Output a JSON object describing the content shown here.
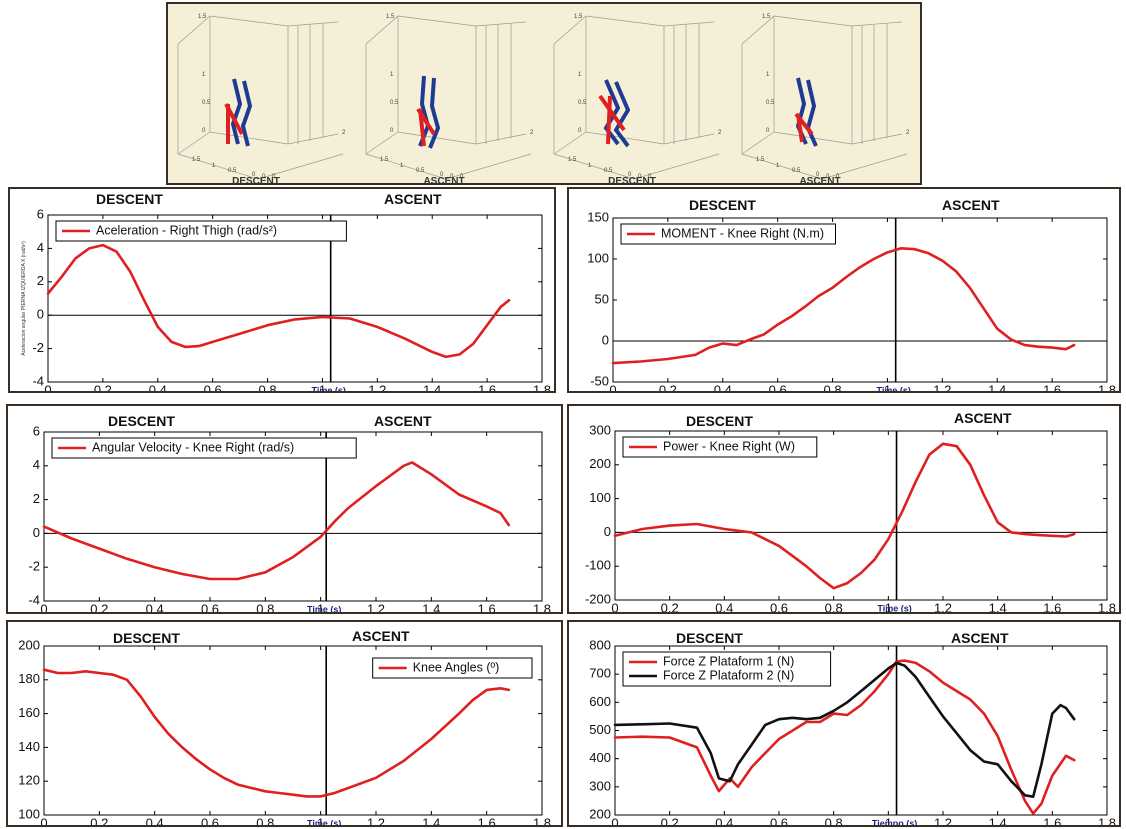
{
  "stick_figures": {
    "labels": [
      "DESCENT",
      "ASCENT",
      "DESCENT",
      "ASCENT"
    ],
    "tick_labels": [
      "1.5",
      "1",
      "0.5",
      "0",
      "2",
      "1.5",
      "1",
      "0.5",
      "0",
      "0",
      "0"
    ],
    "colors": {
      "left_leg": "#1f3a93",
      "right_leg": "#e02020"
    }
  },
  "charts": [
    {
      "id": "accel",
      "descent_label": "DESCENT",
      "ascent_label": "ASCENT",
      "xlabel": "Time (s)",
      "ylabel": "Aceleracion angular PIERNA IZQUIERDA X (rad/s²)",
      "legend": [
        "Aceleration - Right Thigh   (rad/s²)"
      ],
      "legend_pos": "top-left",
      "xlim": [
        0,
        1.8
      ],
      "ylim": [
        -4,
        6
      ],
      "xticks": [
        "0",
        "0.2",
        "0.4",
        "0.6",
        "0.8",
        "1",
        "1.2",
        "1.4",
        "1.6",
        "1.8"
      ],
      "yticks": [
        "-4",
        "-2",
        "0",
        "2",
        "4",
        "6"
      ],
      "divider_x": 1.03
    },
    {
      "id": "moment",
      "descent_label": "DESCENT",
      "ascent_label": "ASCENT",
      "xlabel": "Time (s)",
      "legend": [
        "MOMENT - Knee Right (N.m)"
      ],
      "legend_pos": "top-left",
      "xlim": [
        0,
        1.8
      ],
      "ylim": [
        -50,
        150
      ],
      "xticks": [
        "0",
        "0.2",
        "0.4",
        "0.6",
        "0.8",
        "1",
        "1.2",
        "1.4",
        "1.6",
        "1.8"
      ],
      "yticks": [
        "-50",
        "0",
        "50",
        "100",
        "150"
      ],
      "divider_x": 1.03
    },
    {
      "id": "angvel",
      "descent_label": "DESCENT",
      "ascent_label": "ASCENT",
      "xlabel": "Time (s)",
      "legend": [
        "Angular Velocity - Knee Right  (rad/s)"
      ],
      "legend_pos": "top-left",
      "xlim": [
        0,
        1.8
      ],
      "ylim": [
        -4,
        6
      ],
      "xticks": [
        "0",
        "0.2",
        "0.4",
        "0.6",
        "0.8",
        "1",
        "1.2",
        "1.4",
        "1.6",
        "1.8"
      ],
      "yticks": [
        "-4",
        "-2",
        "0",
        "2",
        "4",
        "6"
      ],
      "divider_x": 1.02
    },
    {
      "id": "power",
      "descent_label": "DESCENT",
      "ascent_label": "ASCENT",
      "xlabel": "Time (s)",
      "legend": [
        "Power - Knee Right (W)"
      ],
      "legend_pos": "top-left",
      "xlim": [
        0,
        1.8
      ],
      "ylim": [
        -200,
        300
      ],
      "xticks": [
        "0",
        "0.2",
        "0.4",
        "0.6",
        "0.8",
        "1",
        "1.2",
        "1.4",
        "1.6",
        "1.8"
      ],
      "yticks": [
        "-200",
        "-100",
        "0",
        "100",
        "200",
        "300"
      ],
      "divider_x": 1.03
    },
    {
      "id": "angles",
      "descent_label": "DESCENT",
      "ascent_label": "ASCENT",
      "xlabel": "Time (s)",
      "legend": [
        "Knee Angles   (º)"
      ],
      "legend_pos": "top-right",
      "xlim": [
        0,
        1.8
      ],
      "ylim": [
        100,
        200
      ],
      "xticks": [
        "0",
        "0.2",
        "0.4",
        "0.6",
        "0.8",
        "1",
        "1.2",
        "1.4",
        "1.6",
        "1.8"
      ],
      "yticks": [
        "100",
        "120",
        "140",
        "160",
        "180",
        "200"
      ],
      "divider_x": 1.02
    },
    {
      "id": "force",
      "descent_label": "DESCENT",
      "ascent_label": "ASCENT",
      "xlabel": "Tiempo (s)",
      "legend": [
        "Force Z Plataform 1  (N)",
        "Force Z Plataform 2  (N)"
      ],
      "legend_pos": "top-left",
      "xlim": [
        0,
        1.8
      ],
      "ylim": [
        200,
        800
      ],
      "xticks": [
        "0",
        "0.2",
        "0.4",
        "0.6",
        "0.8",
        "1",
        "1.2",
        "1.4",
        "1.6",
        "1.8"
      ],
      "yticks": [
        "200",
        "300",
        "400",
        "500",
        "600",
        "700",
        "800"
      ],
      "divider_x": 1.03
    }
  ],
  "chart_data": [
    {
      "type": "line",
      "xlabel": "Time (s)",
      "xlim": [
        0,
        1.8
      ],
      "ylim": [
        -4,
        6
      ],
      "series": [
        {
          "name": "Aceleration - Right Thigh   (rad/s²)",
          "color": "#e02020",
          "x": [
            0,
            0.05,
            0.1,
            0.15,
            0.2,
            0.25,
            0.3,
            0.35,
            0.4,
            0.45,
            0.5,
            0.55,
            0.6,
            0.7,
            0.8,
            0.9,
            1.0,
            1.1,
            1.2,
            1.3,
            1.4,
            1.45,
            1.5,
            1.55,
            1.6,
            1.65,
            1.68
          ],
          "y": [
            1.3,
            2.3,
            3.4,
            4.0,
            4.2,
            3.8,
            2.6,
            0.9,
            -0.7,
            -1.6,
            -1.9,
            -1.85,
            -1.6,
            -1.1,
            -0.6,
            -0.25,
            -0.1,
            -0.2,
            -0.7,
            -1.4,
            -2.2,
            -2.5,
            -2.35,
            -1.7,
            -0.6,
            0.5,
            0.9
          ]
        }
      ]
    },
    {
      "type": "line",
      "xlabel": "Time (s)",
      "xlim": [
        0,
        1.8
      ],
      "ylim": [
        -50,
        150
      ],
      "series": [
        {
          "name": "MOMENT - Knee Right (N.m)",
          "color": "#e02020",
          "x": [
            0,
            0.1,
            0.2,
            0.3,
            0.35,
            0.4,
            0.45,
            0.5,
            0.55,
            0.6,
            0.65,
            0.7,
            0.75,
            0.8,
            0.85,
            0.9,
            0.95,
            1.0,
            1.05,
            1.1,
            1.15,
            1.2,
            1.25,
            1.3,
            1.35,
            1.4,
            1.45,
            1.5,
            1.55,
            1.6,
            1.65,
            1.68
          ],
          "y": [
            -27,
            -25,
            -22,
            -17,
            -8,
            -3,
            -5,
            2,
            8,
            20,
            30,
            42,
            55,
            65,
            78,
            90,
            100,
            108,
            113,
            112,
            107,
            98,
            85,
            65,
            40,
            15,
            2,
            -5,
            -7,
            -8,
            -10,
            -5
          ]
        }
      ]
    },
    {
      "type": "line",
      "xlabel": "Time (s)",
      "xlim": [
        0,
        1.8
      ],
      "ylim": [
        -4,
        6
      ],
      "series": [
        {
          "name": "Angular Velocity - Knee Right  (rad/s)",
          "color": "#e02020",
          "x": [
            0,
            0.1,
            0.2,
            0.3,
            0.4,
            0.5,
            0.6,
            0.7,
            0.8,
            0.9,
            1.0,
            1.05,
            1.1,
            1.2,
            1.3,
            1.33,
            1.4,
            1.5,
            1.6,
            1.65,
            1.68
          ],
          "y": [
            0.4,
            -0.3,
            -0.9,
            -1.5,
            -2.0,
            -2.4,
            -2.7,
            -2.7,
            -2.3,
            -1.4,
            -0.2,
            0.7,
            1.5,
            2.8,
            4.0,
            4.2,
            3.5,
            2.3,
            1.6,
            1.2,
            0.5
          ]
        }
      ]
    },
    {
      "type": "line",
      "xlabel": "Time (s)",
      "xlim": [
        0,
        1.8
      ],
      "ylim": [
        -200,
        300
      ],
      "series": [
        {
          "name": "Power - Knee Right (W)",
          "color": "#e02020",
          "x": [
            0,
            0.1,
            0.2,
            0.3,
            0.4,
            0.5,
            0.55,
            0.6,
            0.65,
            0.7,
            0.75,
            0.8,
            0.85,
            0.9,
            0.95,
            1.0,
            1.05,
            1.1,
            1.15,
            1.2,
            1.25,
            1.3,
            1.35,
            1.4,
            1.45,
            1.5,
            1.55,
            1.6,
            1.65,
            1.68
          ],
          "y": [
            -10,
            10,
            20,
            25,
            10,
            0,
            -20,
            -40,
            -70,
            -100,
            -135,
            -165,
            -150,
            -120,
            -80,
            -20,
            60,
            150,
            230,
            262,
            255,
            200,
            110,
            30,
            0,
            -5,
            -8,
            -10,
            -12,
            -5
          ]
        }
      ]
    },
    {
      "type": "line",
      "xlabel": "Time (s)",
      "xlim": [
        0,
        1.8
      ],
      "ylim": [
        100,
        200
      ],
      "series": [
        {
          "name": "Knee Angles   (º)",
          "color": "#e02020",
          "x": [
            0,
            0.05,
            0.1,
            0.15,
            0.2,
            0.25,
            0.3,
            0.35,
            0.4,
            0.45,
            0.5,
            0.55,
            0.6,
            0.65,
            0.7,
            0.75,
            0.8,
            0.85,
            0.9,
            0.95,
            1.0,
            1.05,
            1.1,
            1.2,
            1.3,
            1.4,
            1.5,
            1.55,
            1.6,
            1.65,
            1.68
          ],
          "y": [
            186,
            184,
            184,
            185,
            184,
            183,
            180,
            170,
            158,
            148,
            140,
            133,
            127,
            122,
            118,
            116,
            114,
            113,
            112,
            111,
            111,
            113,
            116,
            122,
            132,
            145,
            160,
            168,
            174,
            175,
            174
          ]
        }
      ]
    },
    {
      "type": "line",
      "xlabel": "Tiempo (s)",
      "xlim": [
        0,
        1.8
      ],
      "ylim": [
        200,
        800
      ],
      "series": [
        {
          "name": "Force Z Plataform 1  (N)",
          "color": "#e02020",
          "x": [
            0,
            0.1,
            0.2,
            0.3,
            0.35,
            0.38,
            0.42,
            0.45,
            0.5,
            0.55,
            0.6,
            0.65,
            0.7,
            0.75,
            0.8,
            0.85,
            0.9,
            0.95,
            1.0,
            1.03,
            1.06,
            1.1,
            1.15,
            1.2,
            1.25,
            1.3,
            1.35,
            1.4,
            1.45,
            1.5,
            1.53,
            1.56,
            1.6,
            1.65,
            1.68
          ],
          "y": [
            475,
            478,
            475,
            440,
            340,
            285,
            330,
            300,
            370,
            420,
            470,
            500,
            530,
            530,
            560,
            555,
            590,
            640,
            700,
            745,
            748,
            740,
            710,
            670,
            640,
            610,
            560,
            480,
            360,
            250,
            205,
            240,
            340,
            410,
            395
          ]
        },
        {
          "name": "Force Z Plataform 2  (N)",
          "color": "#111111",
          "x": [
            0,
            0.1,
            0.2,
            0.3,
            0.35,
            0.38,
            0.42,
            0.45,
            0.5,
            0.55,
            0.6,
            0.65,
            0.7,
            0.75,
            0.8,
            0.85,
            0.9,
            0.95,
            1.0,
            1.03,
            1.06,
            1.1,
            1.15,
            1.2,
            1.25,
            1.3,
            1.35,
            1.4,
            1.45,
            1.5,
            1.53,
            1.56,
            1.6,
            1.63,
            1.65,
            1.68
          ],
          "y": [
            520,
            522,
            525,
            510,
            420,
            330,
            320,
            380,
            450,
            520,
            540,
            545,
            540,
            545,
            570,
            600,
            640,
            680,
            720,
            740,
            730,
            690,
            620,
            550,
            490,
            430,
            390,
            380,
            320,
            270,
            265,
            380,
            560,
            590,
            580,
            540
          ]
        }
      ]
    }
  ]
}
